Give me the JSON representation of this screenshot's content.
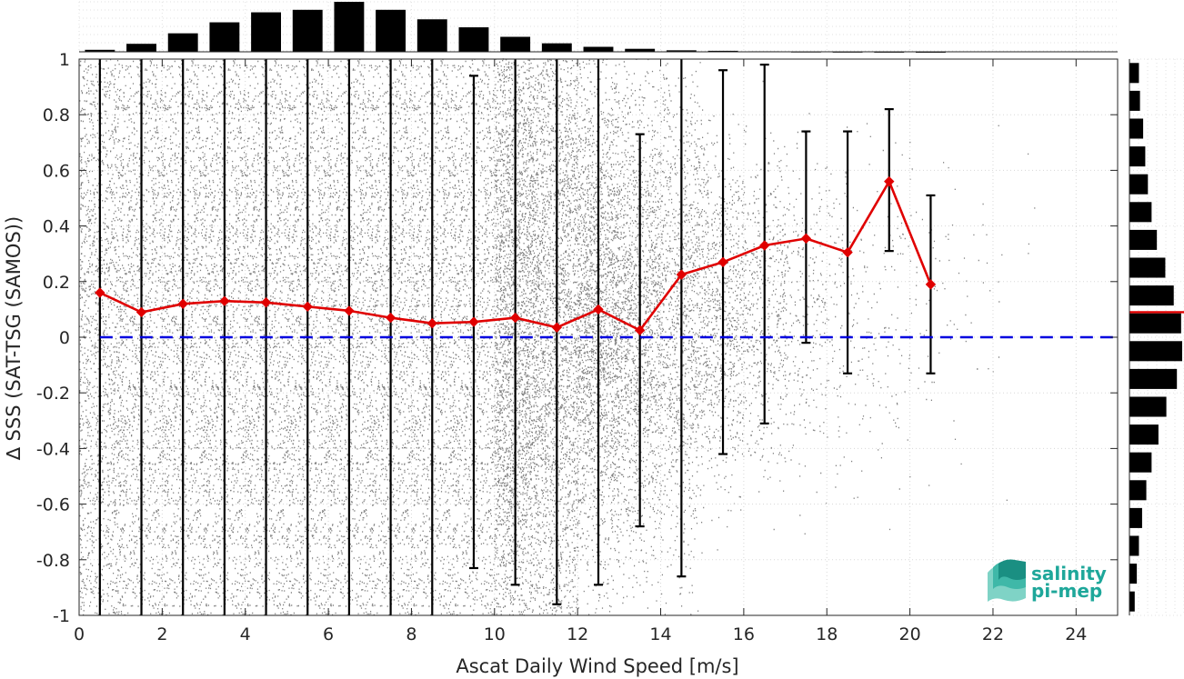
{
  "chart_data": {
    "type": "scatter",
    "xlabel": "Ascat Daily Wind Speed [m/s]",
    "ylabel": "∆ SSS (SAT-TSG (SAMOS))",
    "xlim": [
      0,
      25
    ],
    "ylim": [
      -1,
      1
    ],
    "xticks": [
      0,
      2,
      4,
      6,
      8,
      10,
      12,
      14,
      16,
      18,
      20,
      22,
      24
    ],
    "yticks": [
      -1,
      -0.8,
      -0.6,
      -0.4,
      -0.2,
      0,
      0.2,
      0.4,
      0.6,
      0.8,
      1
    ],
    "grid": "dotted",
    "scatter_color": "#808080",
    "mean_series": {
      "color": "#e00000",
      "marker": "diamond",
      "x": [
        0.5,
        1.5,
        2.5,
        3.5,
        4.5,
        5.5,
        6.5,
        7.5,
        8.5,
        9.5,
        10.5,
        11.5,
        12.5,
        13.5,
        14.5,
        15.5,
        16.5,
        17.5,
        18.5,
        19.5,
        20.5
      ],
      "y": [
        0.16,
        0.09,
        0.12,
        0.13,
        0.125,
        0.11,
        0.095,
        0.07,
        0.05,
        0.055,
        0.07,
        0.035,
        0.1,
        0.025,
        0.225,
        0.27,
        0.33,
        0.355,
        0.305,
        0.56,
        0.19
      ],
      "err_low": [
        -1,
        -1,
        -1,
        -1,
        -1,
        -1,
        -1,
        -1,
        -1,
        -0.83,
        -0.89,
        -0.96,
        -0.89,
        -0.68,
        -0.86,
        -0.42,
        -0.31,
        -0.02,
        -0.13,
        0.31,
        -0.13
      ],
      "err_high": [
        1,
        1,
        1,
        1,
        1,
        1,
        1,
        1,
        1,
        0.94,
        1,
        1,
        1,
        0.73,
        1,
        0.96,
        0.98,
        0.74,
        0.74,
        0.82,
        0.51
      ]
    },
    "zero_line": {
      "y": 0,
      "color": "#0000e0",
      "style": "dashed"
    },
    "top_histogram": {
      "bin_centers": [
        0.5,
        1.5,
        2.5,
        3.5,
        4.5,
        5.5,
        6.5,
        7.5,
        8.5,
        9.5,
        10.5,
        11.5,
        12.5,
        13.5,
        14.5,
        15.5,
        16.5,
        17.5,
        18.5,
        19.5,
        20.5
      ],
      "counts": [
        0.04,
        0.16,
        0.37,
        0.59,
        0.79,
        0.84,
        1.0,
        0.84,
        0.65,
        0.49,
        0.3,
        0.17,
        0.1,
        0.06,
        0.03,
        0.02,
        0.01,
        0.005,
        0.003,
        0.002,
        0.001
      ]
    },
    "right_histogram": {
      "bin_centers": [
        0.95,
        0.85,
        0.75,
        0.65,
        0.55,
        0.45,
        0.35,
        0.25,
        0.15,
        0.05,
        -0.05,
        -0.15,
        -0.25,
        -0.35,
        -0.45,
        -0.55,
        -0.65,
        -0.75,
        -0.85,
        -0.95
      ],
      "counts": [
        0.18,
        0.2,
        0.26,
        0.3,
        0.35,
        0.42,
        0.52,
        0.68,
        0.84,
        0.98,
        1.0,
        0.9,
        0.7,
        0.55,
        0.42,
        0.32,
        0.24,
        0.18,
        0.14,
        0.1
      ],
      "mean_line_y": 0.09,
      "mean_line_color": "#e00000"
    }
  },
  "logo": {
    "line1": "salinity",
    "line2": "pi-mep",
    "color": "#1ea79a"
  }
}
